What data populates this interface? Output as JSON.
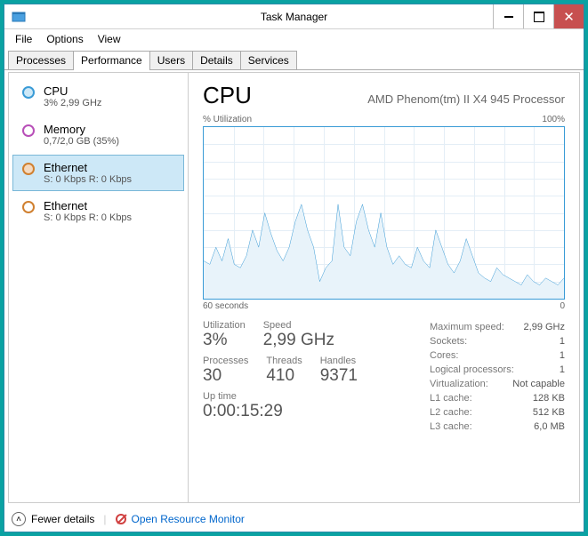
{
  "window": {
    "title": "Task Manager"
  },
  "menu": {
    "file": "File",
    "options": "Options",
    "view": "View"
  },
  "tabs": [
    "Processes",
    "Performance",
    "Users",
    "Details",
    "Services"
  ],
  "active_tab": 1,
  "sidebar": {
    "items": [
      {
        "title": "CPU",
        "sub": "3%  2,99 GHz",
        "color": "#3a9bd6",
        "fill": "#cde8f7"
      },
      {
        "title": "Memory",
        "sub": "0,7/2,0 GB (35%)",
        "color": "#b84fb8",
        "fill": "#ffffff"
      },
      {
        "title": "Ethernet",
        "sub": "S: 0 Kbps R: 0 Kbps",
        "color": "#d08030",
        "fill": "#f4d9bf"
      },
      {
        "title": "Ethernet",
        "sub": "S: 0 Kbps R: 0 Kbps",
        "color": "#d08030",
        "fill": "#ffffff"
      }
    ],
    "selected": 2
  },
  "main": {
    "title": "CPU",
    "subtitle": "AMD Phenom(tm) II X4 945 Processor",
    "chart": {
      "top_left_label": "% Utilization",
      "top_right_label": "100%",
      "bottom_left_label": "60 seconds",
      "bottom_right_label": "0",
      "line_color": "#3a9bd6",
      "fill_color": "#e8f3fa",
      "grid_color": "#e4eef6",
      "border_color": "#3a9bd6",
      "ymax": 100,
      "points": [
        22,
        20,
        30,
        22,
        35,
        20,
        18,
        25,
        40,
        30,
        50,
        38,
        28,
        22,
        30,
        45,
        55,
        40,
        30,
        10,
        18,
        22,
        55,
        30,
        25,
        45,
        55,
        40,
        30,
        50,
        30,
        20,
        25,
        20,
        18,
        30,
        22,
        18,
        40,
        30,
        20,
        15,
        22,
        35,
        25,
        15,
        12,
        10,
        18,
        14,
        12,
        10,
        8,
        14,
        10,
        8,
        12,
        10,
        8,
        12
      ]
    },
    "stats_left": {
      "row1": [
        {
          "label": "Utilization",
          "value": "3%"
        },
        {
          "label": "Speed",
          "value": "2,99 GHz"
        }
      ],
      "row2": [
        {
          "label": "Processes",
          "value": "30"
        },
        {
          "label": "Threads",
          "value": "410"
        },
        {
          "label": "Handles",
          "value": "9371"
        }
      ],
      "uptime_label": "Up time",
      "uptime_value": "0:00:15:29"
    },
    "stats_right": [
      {
        "k": "Maximum speed:",
        "v": "2,99 GHz"
      },
      {
        "k": "Sockets:",
        "v": "1"
      },
      {
        "k": "Cores:",
        "v": "1"
      },
      {
        "k": "Logical processors:",
        "v": "1"
      },
      {
        "k": "Virtualization:",
        "v": "Not capable"
      },
      {
        "k": "L1 cache:",
        "v": "128 KB"
      },
      {
        "k": "L2 cache:",
        "v": "512 KB"
      },
      {
        "k": "L3 cache:",
        "v": "6,0 MB"
      }
    ]
  },
  "footer": {
    "fewer": "Fewer details",
    "orm": "Open Resource Monitor"
  }
}
